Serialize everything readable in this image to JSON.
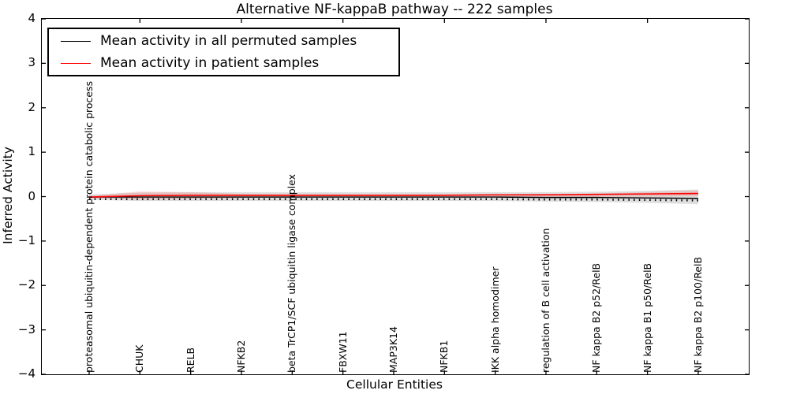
{
  "title": "Alternative NF-kappaB pathway -- 222 samples",
  "legend": {
    "items": [
      {
        "label": "Mean activity in all permuted samples",
        "color": "#000000"
      },
      {
        "label": "Mean activity in patient samples",
        "color": "#ff0000"
      }
    ]
  },
  "y_axis": {
    "label": "Inferred Activity",
    "tick_values": [
      4,
      3,
      2,
      1,
      0,
      -1,
      -2,
      -3,
      -4
    ],
    "tick_labels": [
      "4",
      "3",
      "2",
      "1",
      "0",
      "−1",
      "−2",
      "−3",
      "−4"
    ]
  },
  "x_axis": {
    "label": "Cellular Entities"
  },
  "colors": {
    "permuted_line": "#000000",
    "patient_line": "#ff0000",
    "permuted_band": "#dedede",
    "patient_band": "rgba(255,0,0,0.13)",
    "axis": "#000000"
  },
  "chart_data": {
    "type": "line",
    "title": "Alternative NF-kappaB pathway -- 222 samples",
    "xlabel": "Cellular Entities",
    "ylabel": "Inferred Activity",
    "ylim": [
      -4,
      4
    ],
    "grid": false,
    "legend_position": "upper left",
    "categories": [
      "proteasomal ubiquitin-dependent protein catabolic process",
      "CHUK",
      "RELB",
      "NFKB2",
      "beta TrCP1/SCF ubiquitin ligase complex",
      "FBXW11",
      "MAP3K14",
      "NFKB1",
      "IKK alpha homodimer",
      "regulation of B cell activation",
      "NF kappa B2 p52/RelB",
      "NF kappa B1 p50/RelB",
      "NF kappa B2 p100/RelB"
    ],
    "series": [
      {
        "name": "Mean activity in all permuted samples",
        "color": "#000000",
        "values": [
          -0.01,
          -0.01,
          -0.01,
          -0.01,
          -0.01,
          -0.01,
          -0.01,
          -0.01,
          -0.01,
          -0.02,
          -0.02,
          -0.03,
          -0.04
        ]
      },
      {
        "name": "Mean activity in patient samples",
        "color": "#ff0000",
        "values": [
          -0.01,
          0.02,
          0.03,
          0.03,
          0.03,
          0.03,
          0.03,
          0.03,
          0.04,
          0.04,
          0.05,
          0.06,
          0.07
        ]
      }
    ],
    "bands": [
      {
        "name": "permuted-std-band",
        "color": "#dedede",
        "upper": [
          0.05,
          0.09,
          0.1,
          0.1,
          0.1,
          0.1,
          0.1,
          0.1,
          0.1,
          0.1,
          0.11,
          0.13,
          0.16
        ],
        "lower": [
          -0.07,
          -0.1,
          -0.1,
          -0.1,
          -0.1,
          -0.1,
          -0.1,
          -0.1,
          -0.1,
          -0.11,
          -0.12,
          -0.14,
          -0.17
        ]
      },
      {
        "name": "patient-std-band",
        "color": "rgba(255,0,0,0.13)",
        "upper": [
          0.01,
          0.12,
          0.1,
          0.06,
          0.05,
          0.05,
          0.05,
          0.05,
          0.05,
          0.06,
          0.07,
          0.1,
          0.14
        ],
        "lower": [
          -0.03,
          -0.07,
          -0.05,
          -0.03,
          -0.02,
          -0.02,
          -0.02,
          -0.02,
          -0.02,
          -0.02,
          -0.01,
          0.0,
          0.01
        ]
      }
    ]
  }
}
